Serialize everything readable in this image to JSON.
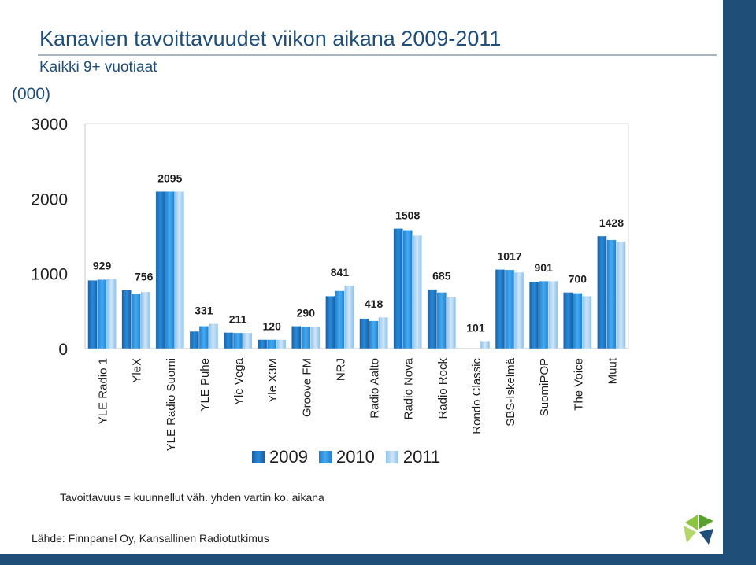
{
  "header": {
    "title": "Kanavien tavoittavuudet viikon aikana 2009-2011",
    "subtitle": "Kaikki 9+ vuotiaat",
    "unit_label": "(000)"
  },
  "footnote": "Tavoittavuus = kuunnellut väh. yhden vartin ko. aikana",
  "source": "Lähde: Finnpanel Oy, Kansallinen Radiotutkimus",
  "colors": {
    "s2009": "#1e78c8",
    "s2010": "#2b95e0",
    "s2011": "#a9d0f0",
    "brand": "#1f4e79"
  },
  "chart_data": {
    "type": "bar",
    "title": "Kanavien tavoittavuudet viikon aikana 2009-2011",
    "ylabel": "(000)",
    "ylim": [
      0,
      3000
    ],
    "yticks": [
      0,
      1000,
      2000,
      3000
    ],
    "legend_position": "bottom",
    "categories": [
      "YLE Radio 1",
      "YleX",
      "YLE Radio Suomi",
      "YLE Puhe",
      "Yle Vega",
      "Yle X3M",
      "Groove FM",
      "NRJ",
      "Radio Aalto",
      "Radio Nova",
      "Radio Rock",
      "Rondo Classic",
      "SBS-Iskelmä",
      "SuomiPOP",
      "The Voice",
      "Muut"
    ],
    "series": [
      {
        "name": "2009",
        "values": [
          910,
          780,
          2095,
          230,
          215,
          120,
          300,
          700,
          400,
          1600,
          790,
          null,
          1055,
          890,
          750,
          1500
        ]
      },
      {
        "name": "2010",
        "values": [
          920,
          730,
          2095,
          300,
          211,
          120,
          290,
          770,
          370,
          1580,
          750,
          null,
          1050,
          900,
          740,
          1450
        ]
      },
      {
        "name": "2011",
        "values": [
          929,
          756,
          2095,
          331,
          211,
          120,
          290,
          841,
          418,
          1508,
          685,
          101,
          1017,
          901,
          700,
          1428
        ]
      }
    ],
    "data_labels": [
      "929",
      "756",
      "2095",
      "331",
      "211",
      "120",
      "290",
      "841",
      "418",
      "1508",
      "685",
      "101",
      "1017",
      "901",
      "700",
      "1428"
    ]
  }
}
